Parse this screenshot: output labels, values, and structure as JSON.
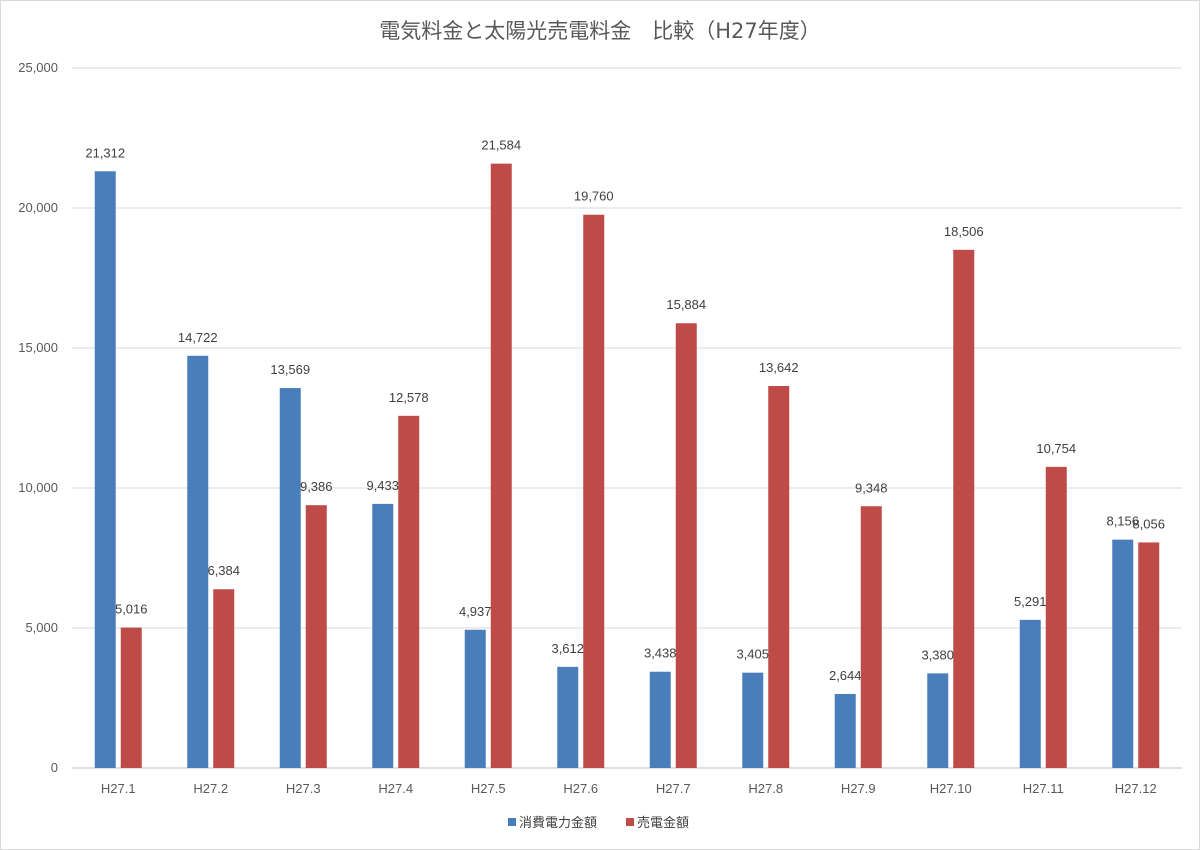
{
  "chart_data": {
    "type": "bar",
    "title": "電気料金と太陽光売電料金　比較（H27年度）",
    "categories": [
      "H27.1",
      "H27.2",
      "H27.3",
      "H27.4",
      "H27.5",
      "H27.6",
      "H27.7",
      "H27.8",
      "H27.9",
      "H27.10",
      "H27.11",
      "H27.12"
    ],
    "series": [
      {
        "name": "消費電力金額",
        "color": "#4a7ebb",
        "values": [
          21312,
          14722,
          13569,
          9433,
          4937,
          3612,
          3438,
          3405,
          2644,
          3380,
          5291,
          8156
        ]
      },
      {
        "name": "売電金額",
        "color": "#be4b48",
        "values": [
          5016,
          6384,
          9386,
          12578,
          21584,
          19760,
          15884,
          13642,
          9348,
          18506,
          10754,
          8056
        ]
      }
    ],
    "ylim": [
      0,
      25000
    ],
    "yticks": [
      0,
      5000,
      10000,
      15000,
      20000,
      25000
    ],
    "ytick_labels": [
      "0",
      "5,000",
      "10,000",
      "15,000",
      "20,000",
      "25,000"
    ],
    "grid": true,
    "legend_position": "bottom",
    "data_labels": true
  }
}
